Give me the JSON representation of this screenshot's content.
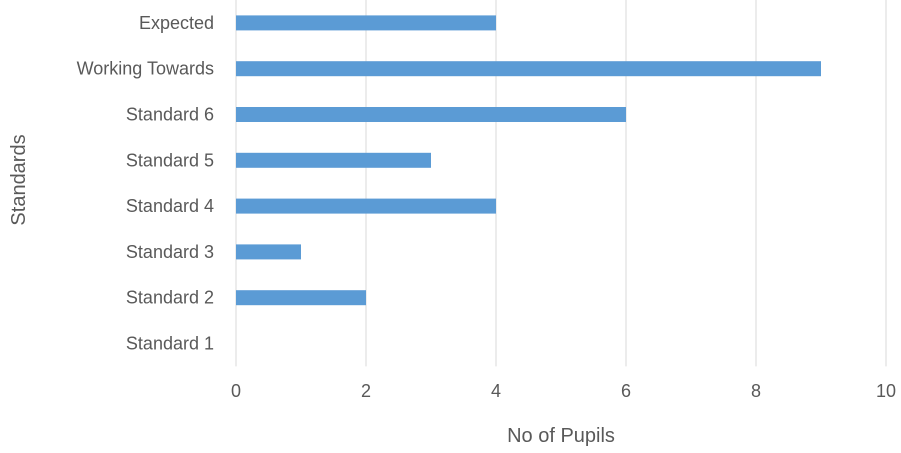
{
  "chart_data": {
    "type": "bar",
    "orientation": "horizontal",
    "categories": [
      "Standard 1",
      "Standard 2",
      "Standard 3",
      "Standard 4",
      "Standard 5",
      "Standard 6",
      "Working Towards",
      "Expected"
    ],
    "values": [
      0,
      2,
      1,
      4,
      3,
      6,
      9,
      4
    ],
    "xlabel": "No of Pupils",
    "ylabel": "Standards",
    "xlim": [
      0,
      10
    ],
    "x_ticks": [
      0,
      2,
      4,
      6,
      8,
      10
    ],
    "grid": true,
    "legend": "none",
    "colors": {
      "bar": "#5B9BD5",
      "grid": "#D9D9D9",
      "text": "#595959"
    }
  }
}
